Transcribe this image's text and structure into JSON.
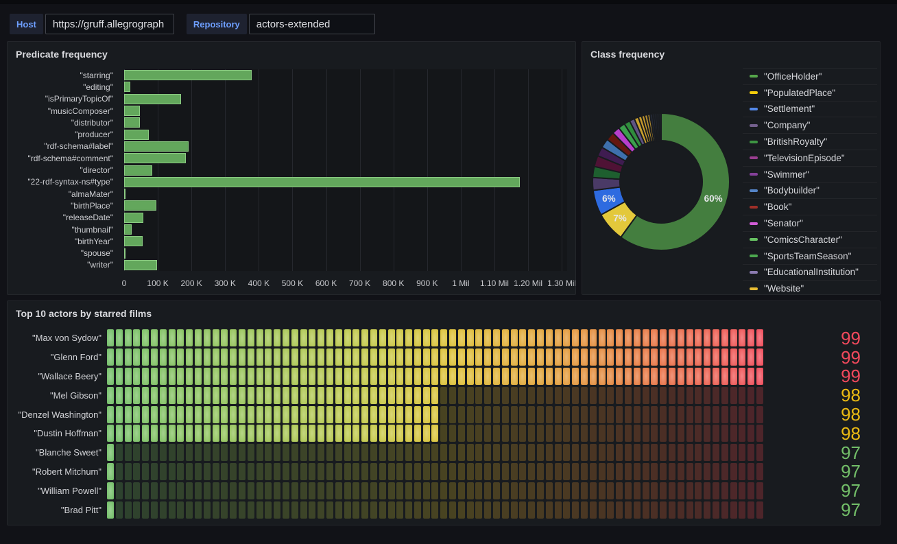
{
  "toolbar": {
    "host_label": "Host",
    "host_value": "https://gruff.allegrograph",
    "repository_label": "Repository",
    "repository_value": "actors-extended"
  },
  "colors": {
    "page_bg": "#111217",
    "panel_bg": "#181b1f",
    "plot_bg": "#141619",
    "variable_label_text": "#6e9fff",
    "title_text": "#d9dade",
    "axis_text": "#c8c9cd"
  },
  "chart_data": [
    {
      "id": "predicate-frequency",
      "type": "bar",
      "orientation": "horizontal",
      "title": "Predicate frequency",
      "bar_color": "#63a75c",
      "bar_border_color": "#8ccb83",
      "categories": [
        "\"starring\"",
        "\"editing\"",
        "\"isPrimaryTopicOf\"",
        "\"musicComposer\"",
        "\"distributor\"",
        "\"producer\"",
        "\"rdf-schema#label\"",
        "\"rdf-schema#comment\"",
        "\"director\"",
        "\"22-rdf-syntax-ns#type\"",
        "\"almaMater\"",
        "\"birthPlace\"",
        "\"releaseDate\"",
        "\"thumbnail\"",
        "\"birthYear\"",
        "\"spouse\"",
        "\"writer\""
      ],
      "values": [
        378000,
        18000,
        169000,
        46000,
        47000,
        73000,
        191000,
        184000,
        83000,
        1176000,
        4000,
        95000,
        57000,
        22000,
        56000,
        5000,
        98000
      ],
      "x_ticks": [
        {
          "label": "0",
          "value": 0
        },
        {
          "label": "100 K",
          "value": 100000
        },
        {
          "label": "200 K",
          "value": 200000
        },
        {
          "label": "300 K",
          "value": 300000
        },
        {
          "label": "400 K",
          "value": 400000
        },
        {
          "label": "500 K",
          "value": 500000
        },
        {
          "label": "600 K",
          "value": 600000
        },
        {
          "label": "700 K",
          "value": 700000
        },
        {
          "label": "800 K",
          "value": 800000
        },
        {
          "label": "900 K",
          "value": 900000
        },
        {
          "label": "1 Mil",
          "value": 1000000
        },
        {
          "label": "1.10 Mil",
          "value": 1100000
        },
        {
          "label": "1.20 Mil",
          "value": 1200000
        },
        {
          "label": "1.30 Mil",
          "value": 1300000
        }
      ],
      "x_max": 1316000,
      "grid": true
    },
    {
      "id": "class-frequency",
      "type": "pie",
      "title": "Class frequency",
      "donut": true,
      "inner_radius_ratio": 0.6,
      "legend_position": "right",
      "min_label_pct": 5,
      "label_suffix": "%",
      "slices": [
        {
          "label": "\"OfficeHolder\"",
          "pct": 60,
          "color": "#56a64b",
          "slice_color": "#447e3f"
        },
        {
          "label": "\"PopulatedPlace\"",
          "pct": 7,
          "color": "#f2cc0c",
          "slice_color": "#e3c83b"
        },
        {
          "label": "\"Settlement\"",
          "pct": 6,
          "color": "#5488e8",
          "slice_color": "#2e6be0"
        },
        {
          "label": "\"Company\"",
          "pct": 3,
          "color": "#74608e",
          "slice_color": "#4a3a66"
        },
        {
          "label": "\"BritishRoyalty\"",
          "pct": 2.6,
          "color": "#3d9442",
          "slice_color": "#1e5f2f"
        },
        {
          "label": "\"TelevisionEpisode\"",
          "pct": 2.6,
          "color": "#9a3e90",
          "slice_color": "#4f1235"
        },
        {
          "label": "\"Swimmer\"",
          "pct": 2.2,
          "color": "#844099",
          "slice_color": "#3f1c51"
        },
        {
          "label": "\"Bodybuilder\"",
          "pct": 2.2,
          "color": "#5585c8",
          "slice_color": "#3e70ac"
        },
        {
          "label": "\"Book\"",
          "pct": 2,
          "color": "#9e2f28",
          "slice_color": "#641710"
        },
        {
          "label": "\"Senator\"",
          "pct": 1.8,
          "color": "#d05cd5",
          "slice_color": "#b73ecb"
        },
        {
          "label": "\"ComicsCharacter\"",
          "pct": 1.6,
          "color": "#67c262",
          "slice_color": "#3ba04c"
        },
        {
          "label": "\"SportsTeamSeason\"",
          "pct": 1.4,
          "color": "#4ca84f",
          "slice_color": "#2f8c3c"
        },
        {
          "label": "\"EducationalInstitution\"",
          "pct": 1.2,
          "color": "#8b7bb0",
          "slice_color": "#5f5383"
        },
        {
          "label": "\"Website\"",
          "pct": 1,
          "color": "#e7bc33",
          "slice_color": "#c9a02e"
        }
      ],
      "other_slices": [
        {
          "pct": 0.8,
          "color": "#c79a2b"
        },
        {
          "pct": 0.7,
          "color": "#bd932c"
        },
        {
          "pct": 0.7,
          "color": "#b28b2e"
        },
        {
          "pct": 0.6,
          "color": "#a8842f"
        },
        {
          "pct": 0.6,
          "color": "#262b3a"
        },
        {
          "pct": 0.5,
          "color": "#252a38"
        },
        {
          "pct": 0.5,
          "color": "#242936"
        },
        {
          "pct": 0.5,
          "color": "#232834"
        },
        {
          "pct": 0.5,
          "color": "#222733"
        }
      ]
    },
    {
      "id": "top-actors",
      "type": "bar-gauge",
      "title": "Top 10 actors by starred films",
      "min": 97,
      "max": 99,
      "cells": 75,
      "rows": [
        {
          "label": "\"Max von Sydow\"",
          "value": 99
        },
        {
          "label": "\"Glenn Ford\"",
          "value": 99
        },
        {
          "label": "\"Wallace Beery\"",
          "value": 99
        },
        {
          "label": "\"Mel Gibson\"",
          "value": 98
        },
        {
          "label": "\"Denzel Washington\"",
          "value": 98
        },
        {
          "label": "\"Dustin Hoffman\"",
          "value": 98
        },
        {
          "label": "\"Blanche Sweet\"",
          "value": 97
        },
        {
          "label": "\"Robert Mitchum\"",
          "value": 97
        },
        {
          "label": "\"William Powell\"",
          "value": 97
        },
        {
          "label": "\"Brad Pitt\"",
          "value": 97
        }
      ],
      "thresholds": [
        {
          "value": 97,
          "color": "#73bf69"
        },
        {
          "value": 98,
          "color": "#ecbb13"
        },
        {
          "value": 99,
          "color": "#f2495c"
        }
      ],
      "gradient": [
        [
          0.0,
          "#74bf69"
        ],
        [
          0.18,
          "#94c45c"
        ],
        [
          0.38,
          "#c0c94b"
        ],
        [
          0.52,
          "#ddc238"
        ],
        [
          0.68,
          "#e2a13c"
        ],
        [
          0.82,
          "#e77a44"
        ],
        [
          1.0,
          "#f04e5c"
        ]
      ]
    }
  ]
}
